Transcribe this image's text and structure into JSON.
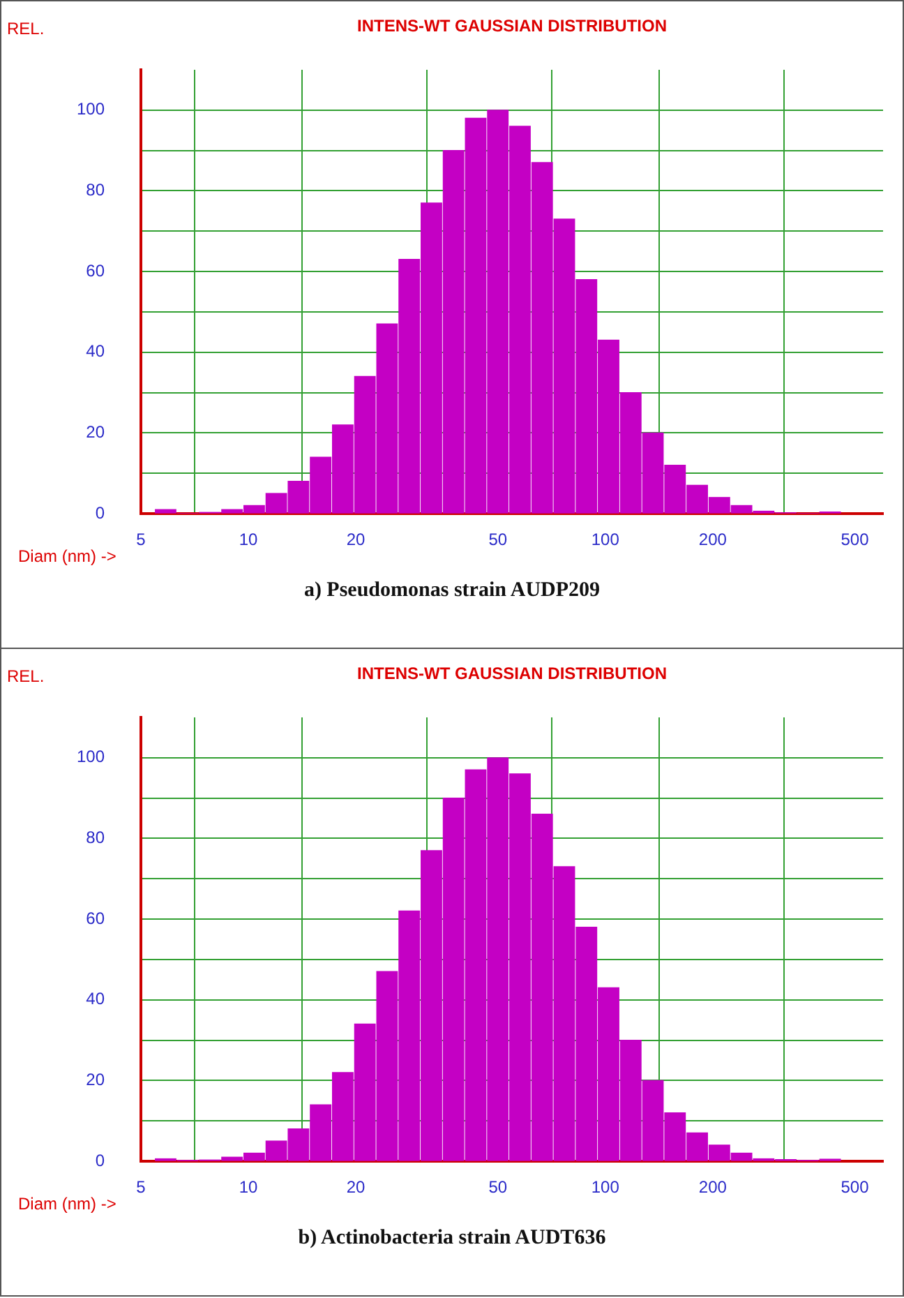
{
  "chart_data": [
    {
      "type": "histogram",
      "title": "INTENS-WT GAUSSIAN DISTRIBUTION",
      "xlabel": "Diam (nm) ->",
      "ylabel": "REL.",
      "annotations": [
        "a) Pseudomonas strain AUDP209"
      ],
      "bins": [
        5.46,
        6.3,
        7.26,
        8.38,
        9.67,
        11.15,
        12.86,
        14.84,
        17.12,
        19.75,
        22.78,
        26.28,
        30.32,
        34.98,
        40.35,
        46.55,
        53.7,
        61.94,
        71.46,
        82.44,
        95.1,
        109.7,
        126.6,
        146.0,
        168.4,
        194.3,
        224.2,
        258.6,
        298.3,
        344.1,
        397.0,
        458.0
      ],
      "values": [
        1,
        0,
        0.3,
        1,
        2,
        5,
        8,
        14,
        22,
        34,
        47,
        63,
        77,
        90,
        98,
        100,
        96,
        87,
        73,
        58,
        43,
        30,
        20,
        12,
        7,
        4,
        2,
        0.6,
        0.2,
        0,
        0.4
      ],
      "color": "#c400c4",
      "log": "x",
      "xlim": [
        5,
        600
      ],
      "xticks": [
        5,
        10,
        20,
        50,
        100,
        200,
        500
      ],
      "ylim": [
        0,
        110
      ],
      "yticks": [
        0,
        {
          "value": 10,
          "label": null
        },
        20,
        {
          "value": 30,
          "label": null
        },
        40,
        {
          "value": 50,
          "label": null
        },
        60,
        {
          "value": 70,
          "label": null
        },
        80,
        {
          "value": 90,
          "label": null
        },
        100
      ],
      "grid": true
    },
    {
      "type": "histogram",
      "title": "INTENS-WT GAUSSIAN DISTRIBUTION",
      "xlabel": "Diam (nm) ->",
      "ylabel": "REL.",
      "annotations": [
        "b) Actinobacteria strain AUDT636"
      ],
      "bins": [
        5.46,
        6.3,
        7.26,
        8.38,
        9.67,
        11.15,
        12.86,
        14.84,
        17.12,
        19.75,
        22.78,
        26.28,
        30.32,
        34.98,
        40.35,
        46.55,
        53.7,
        61.94,
        71.46,
        82.44,
        95.1,
        109.7,
        126.6,
        146.0,
        168.4,
        194.3,
        224.2,
        258.6,
        298.3,
        344.1,
        397.0,
        458.0
      ],
      "values": [
        0.6,
        0.1,
        0.3,
        1,
        2,
        5,
        8,
        14,
        22,
        34,
        47,
        62,
        77,
        90,
        97,
        100,
        96,
        86,
        73,
        58,
        43,
        30,
        20,
        12,
        7,
        4,
        2,
        0.6,
        0.4,
        0.1,
        0.5
      ],
      "color": "#c400c4",
      "log": "x",
      "xlim": [
        5,
        600
      ],
      "xticks": [
        5,
        10,
        20,
        50,
        100,
        200,
        500
      ],
      "ylim": [
        0,
        110
      ],
      "yticks": [
        0,
        {
          "value": 10,
          "label": null
        },
        20,
        {
          "value": 30,
          "label": null
        },
        40,
        {
          "value": 50,
          "label": null
        },
        60,
        {
          "value": 70,
          "label": null
        },
        80,
        {
          "value": 90,
          "label": null
        },
        100
      ],
      "grid": true
    }
  ]
}
